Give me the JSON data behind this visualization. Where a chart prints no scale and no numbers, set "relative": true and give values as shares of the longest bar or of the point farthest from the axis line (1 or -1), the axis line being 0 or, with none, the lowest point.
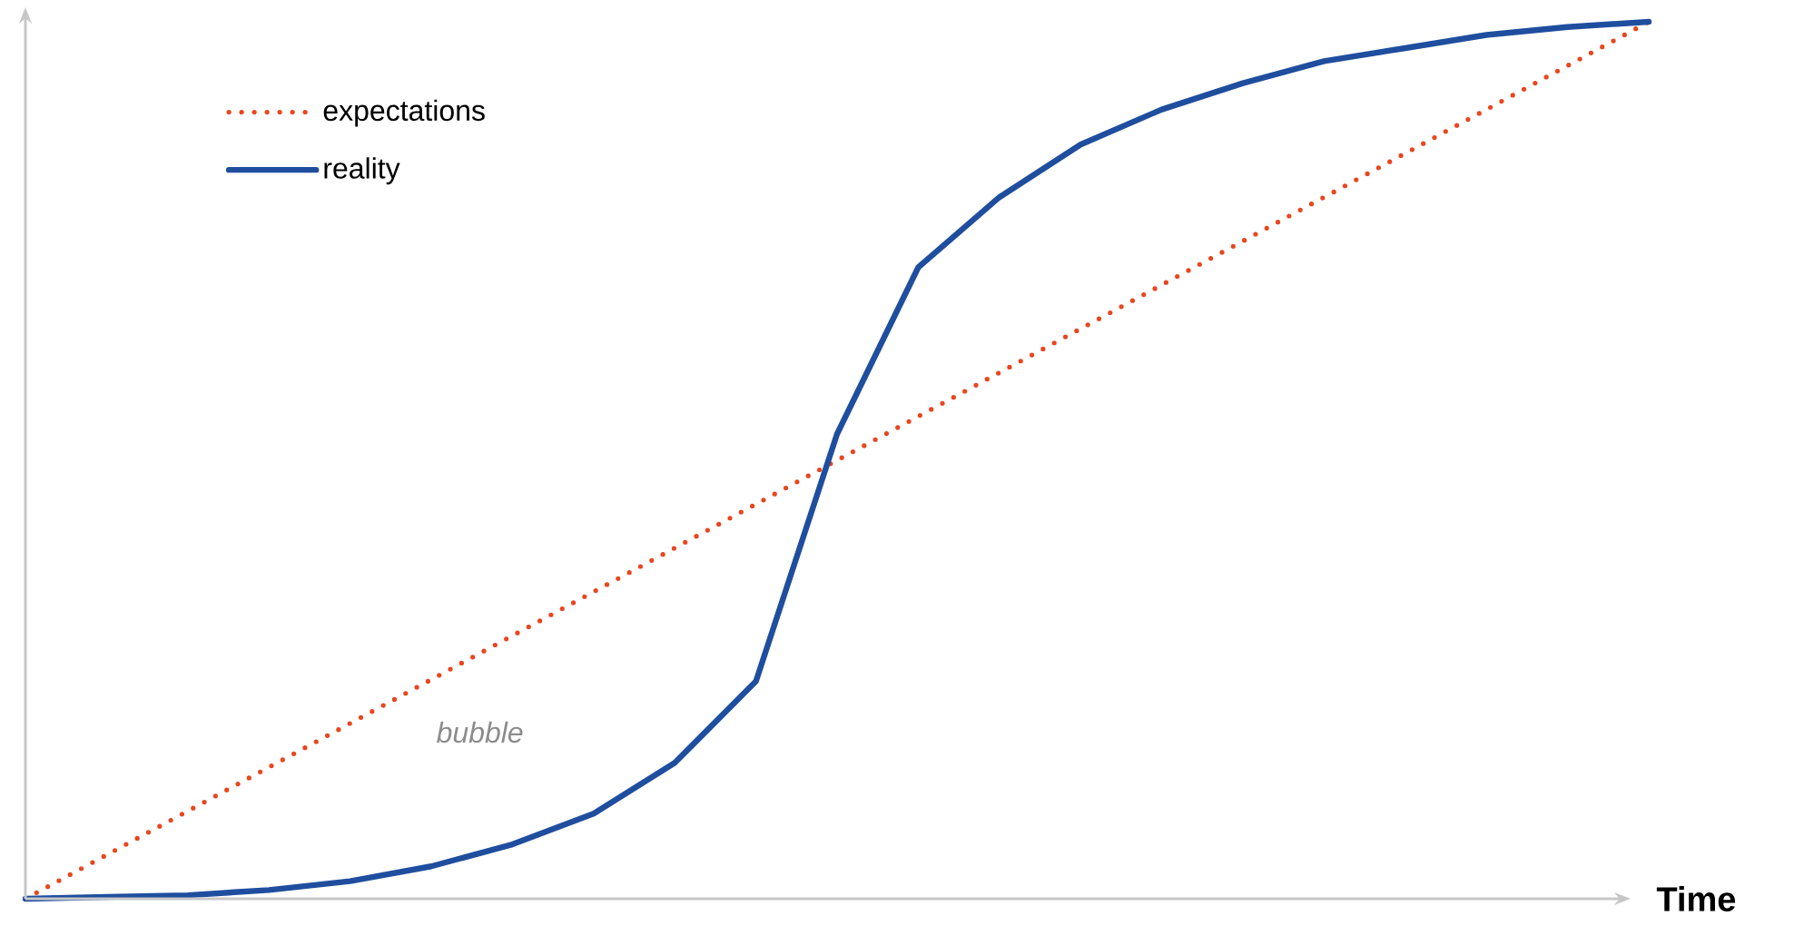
{
  "chart_data": {
    "type": "line",
    "relative": true,
    "xlabel": "Time",
    "legend": "top left",
    "annotations": [
      "bubble"
    ],
    "categories": [
      null,
      null,
      null,
      null,
      null,
      null,
      null,
      null,
      null,
      null,
      null,
      null,
      null,
      null,
      null,
      null,
      null,
      null,
      null,
      null,
      null
    ],
    "series": [
      {
        "name": "expectations",
        "color": "#e8461e",
        "line_style": "dotted",
        "values": [
          0,
          0.05,
          0.1,
          0.15,
          0.2,
          0.25,
          0.3,
          0.35,
          0.4,
          0.45,
          0.5,
          0.55,
          0.6,
          0.65,
          0.7,
          0.75,
          0.8,
          0.85,
          0.9,
          0.95,
          1
        ]
      },
      {
        "name": "reality",
        "color": "#1f4e9e",
        "line_style": "solid",
        "values": [
          0,
          0.002,
          0.004,
          0.01,
          0.02,
          0.037,
          0.062,
          0.097,
          0.155,
          0.248,
          0.53,
          0.72,
          0.8,
          0.86,
          0.9,
          0.93,
          0.955,
          0.97,
          0.985,
          0.994,
          1
        ]
      }
    ]
  }
}
